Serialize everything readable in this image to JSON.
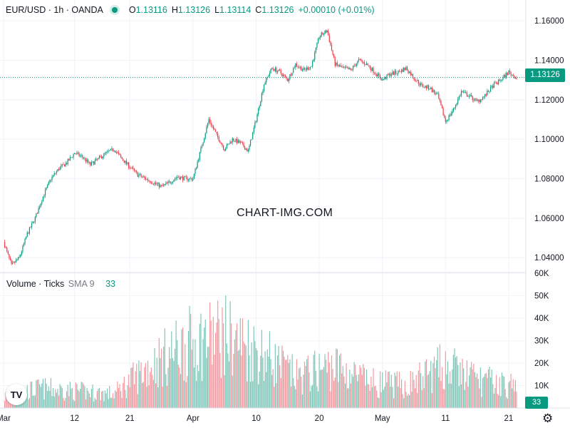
{
  "header": {
    "symbol": "EUR/USD · 1h · OANDA",
    "open_label": "O",
    "open": "1.13116",
    "high_label": "H",
    "high": "1.13126",
    "low_label": "L",
    "low": "1.13114",
    "close_label": "C",
    "close": "1.13126",
    "change": "+0.00010 (+0.01%)"
  },
  "volume_legend": {
    "title": "Volume · Ticks",
    "sma": "SMA 9",
    "value": "33"
  },
  "watermark": "CHART-IMG.COM",
  "last_price_label": "1.13126",
  "last_volume_label": "33",
  "logo_text": "TV",
  "icons": {
    "settings": "gear-icon",
    "logo": "tradingview-logo-icon"
  },
  "colors": {
    "up": "#089981",
    "down": "#f23645",
    "vol_up": "#80c7b9",
    "vol_down": "#f49aa1"
  },
  "chart_data": [
    {
      "type": "candlestick",
      "title": "",
      "timeframe": "1h",
      "y_ticks": [
        "1.04000",
        "1.06000",
        "1.08000",
        "1.10000",
        "1.12000",
        "1.14000",
        "1.16000"
      ],
      "ylim": [
        1.0325,
        1.1705
      ],
      "x_ticks": [
        "Mar",
        "12",
        "21",
        "Apr",
        "10",
        "20",
        "May",
        "11",
        "21"
      ],
      "grid": true,
      "last_price": 1.13126,
      "close_path": [
        [
          "Mar",
          1.048
        ],
        [
          "",
          1.036
        ],
        [
          "",
          1.04
        ],
        [
          "",
          1.052
        ],
        [
          "",
          1.06
        ],
        [
          "",
          1.071
        ],
        [
          "",
          1.08
        ],
        [
          "",
          1.085
        ],
        [
          "",
          1.088
        ],
        [
          "12",
          1.093
        ],
        [
          "",
          1.091
        ],
        [
          "",
          1.087
        ],
        [
          "",
          1.09
        ],
        [
          "",
          1.093
        ],
        [
          "",
          1.095
        ],
        [
          "",
          1.09
        ],
        [
          "21",
          1.086
        ],
        [
          "",
          1.082
        ],
        [
          "",
          1.08
        ],
        [
          "",
          1.078
        ],
        [
          "",
          1.076
        ],
        [
          "",
          1.078
        ],
        [
          "",
          1.081
        ],
        [
          "",
          1.08
        ],
        [
          "Apr",
          1.08
        ],
        [
          "",
          1.095
        ],
        [
          "",
          1.11
        ],
        [
          "",
          1.102
        ],
        [
          "",
          1.095
        ],
        [
          "",
          1.1
        ],
        [
          "",
          1.098
        ],
        [
          "",
          1.094
        ],
        [
          "10",
          1.11
        ],
        [
          "",
          1.128
        ],
        [
          "",
          1.136
        ],
        [
          "",
          1.134
        ],
        [
          "",
          1.13
        ],
        [
          "",
          1.138
        ],
        [
          "",
          1.135
        ],
        [
          "",
          1.137
        ],
        [
          "20",
          1.152
        ],
        [
          "",
          1.155
        ],
        [
          "",
          1.138
        ],
        [
          "",
          1.136
        ],
        [
          "",
          1.135
        ],
        [
          "",
          1.14
        ],
        [
          "",
          1.138
        ],
        [
          "",
          1.134
        ],
        [
          "May",
          1.13
        ],
        [
          "",
          1.133
        ],
        [
          "",
          1.134
        ],
        [
          "",
          1.136
        ],
        [
          "",
          1.131
        ],
        [
          "",
          1.127
        ],
        [
          "",
          1.126
        ],
        [
          "",
          1.122
        ],
        [
          "11",
          1.109
        ],
        [
          "",
          1.115
        ],
        [
          "",
          1.124
        ],
        [
          "",
          1.122
        ],
        [
          "",
          1.119
        ],
        [
          "",
          1.122
        ],
        [
          "",
          1.127
        ],
        [
          "",
          1.13
        ],
        [
          "21",
          1.134
        ],
        [
          "",
          1.131
        ]
      ]
    },
    {
      "type": "bar",
      "title": "Volume · Ticks",
      "y_ticks": [
        "10K",
        "20K",
        "30K",
        "40K",
        "50K",
        "60K"
      ],
      "ylim": [
        0,
        60000
      ],
      "last_value": 33,
      "sma_period": 9,
      "volume_envelope": [
        [
          "Mar",
          8000
        ],
        [
          "12",
          14000
        ],
        [
          "21",
          12000
        ],
        [
          "Apr",
          10000
        ],
        [
          "",
          30000
        ],
        [
          "",
          45000
        ],
        [
          "10",
          52000
        ],
        [
          "",
          40000
        ],
        [
          "20",
          22000
        ],
        [
          "",
          30000
        ],
        [
          "May",
          18000
        ],
        [
          "",
          16000
        ],
        [
          "11",
          30000
        ],
        [
          "",
          20000
        ],
        [
          "21",
          15000
        ]
      ]
    }
  ]
}
